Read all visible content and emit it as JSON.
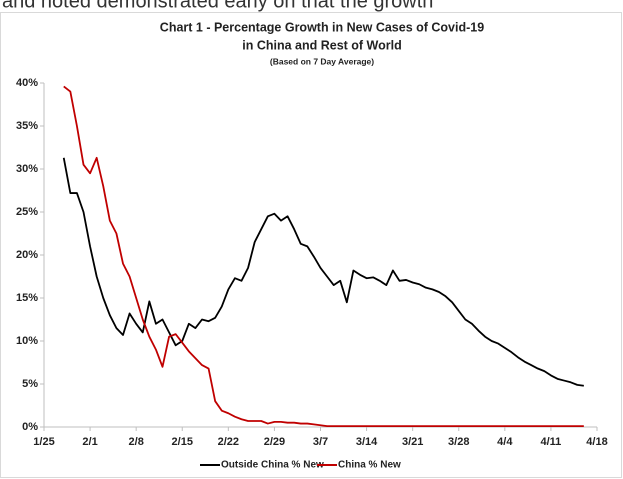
{
  "context_text": "and noted demonstrated early on that the growth",
  "chart_data": {
    "type": "line",
    "title": "Chart 1 - Percentage Growth in New Cases of Covid-19",
    "title_line2": "in China and Rest of World",
    "subtitle": "(Based on 7 Day Average)",
    "x": [
      "1/28",
      "1/29",
      "1/30",
      "1/31",
      "2/1",
      "2/2",
      "2/3",
      "2/4",
      "2/5",
      "2/6",
      "2/7",
      "2/8",
      "2/9",
      "2/10",
      "2/11",
      "2/12",
      "2/13",
      "2/14",
      "2/15",
      "2/16",
      "2/17",
      "2/18",
      "2/19",
      "2/20",
      "2/21",
      "2/22",
      "2/23",
      "2/24",
      "2/25",
      "2/26",
      "2/27",
      "2/28",
      "2/29",
      "3/1",
      "3/2",
      "3/3",
      "3/4",
      "3/5",
      "3/6",
      "3/7",
      "3/8",
      "3/9",
      "3/10",
      "3/11",
      "3/12",
      "3/13",
      "3/14",
      "3/15",
      "3/16",
      "3/17",
      "3/18",
      "3/19",
      "3/20",
      "3/21",
      "3/22",
      "3/23",
      "3/24",
      "3/25",
      "3/26",
      "3/27",
      "3/28",
      "3/29",
      "3/30",
      "3/31",
      "4/1",
      "4/2",
      "4/3",
      "4/4",
      "4/5",
      "4/6",
      "4/7",
      "4/8",
      "4/9",
      "4/10",
      "4/11",
      "4/12",
      "4/13",
      "4/14",
      "4/15",
      "4/16"
    ],
    "series": [
      {
        "name": "Outside China % New",
        "color": "#000000",
        "values": [
          31.3,
          27.2,
          27.2,
          25,
          21,
          17.5,
          15,
          13,
          11.5,
          10.7,
          13.2,
          12,
          11,
          14.6,
          12,
          12.5,
          11,
          9.5,
          10,
          12,
          11.5,
          12.5,
          12.3,
          12.7,
          14,
          16,
          17.3,
          17,
          18.5,
          21.5,
          23,
          24.5,
          24.8,
          24,
          24.5,
          23,
          21.3,
          21,
          19.8,
          18.5,
          17.5,
          16.5,
          17,
          14.5,
          18.2,
          17.7,
          17.3,
          17.4,
          17,
          16.5,
          18.2,
          17,
          17.1,
          16.8,
          16.6,
          16.2,
          16,
          15.7,
          15.2,
          14.5,
          13.5,
          12.5,
          12,
          11.2,
          10.5,
          10,
          9.7,
          9.2,
          8.7,
          8.1,
          7.6,
          7.2,
          6.8,
          6.5,
          6,
          5.6,
          5.4,
          5.2,
          4.9,
          4.8
        ]
      },
      {
        "name": "China % New",
        "color": "#c00000",
        "values": [
          39.6,
          39,
          35,
          30.5,
          29.5,
          31.3,
          28,
          24,
          22.5,
          19,
          17.5,
          15,
          12.5,
          10.5,
          9,
          7,
          10.5,
          10.8,
          9.8,
          8.8,
          8,
          7.2,
          6.8,
          3,
          1.9,
          1.6,
          1.2,
          0.9,
          0.7,
          0.7,
          0.7,
          0.4,
          0.6,
          0.6,
          0.5,
          0.5,
          0.4,
          0.4,
          0.3,
          0.2,
          0.1,
          0.1,
          0.1,
          0.1,
          0.1,
          0.1,
          0.1,
          0.1,
          0.1,
          0.1,
          0.1,
          0.1,
          0.1,
          0.1,
          0.1,
          0.1,
          0.1,
          0.1,
          0.1,
          0.1,
          0.1,
          0.1,
          0.1,
          0.1,
          0.1,
          0.1,
          0.1,
          0.1,
          0.1,
          0.1,
          0.1,
          0.1,
          0.1,
          0.1,
          0.1,
          0.1,
          0.1,
          0.1,
          0.1,
          0.1
        ]
      }
    ],
    "xlim": [
      "1/25",
      "4/18"
    ],
    "xticks": [
      "1/25",
      "2/1",
      "2/8",
      "2/15",
      "2/22",
      "2/29",
      "3/7",
      "3/14",
      "3/21",
      "3/28",
      "4/4",
      "4/11",
      "4/18"
    ],
    "ylim": [
      0,
      40
    ],
    "yticks": [
      {
        "value": 0,
        "label": "0%"
      },
      {
        "value": 5,
        "label": "5%"
      },
      {
        "value": 10,
        "label": "10%"
      },
      {
        "value": 15,
        "label": "15%"
      },
      {
        "value": 20,
        "label": "20%"
      },
      {
        "value": 25,
        "label": "25%"
      },
      {
        "value": 30,
        "label": "30%"
      },
      {
        "value": 35,
        "label": "35%"
      },
      {
        "value": 40,
        "label": "40%"
      }
    ],
    "grid": false,
    "legend": "bottom"
  }
}
